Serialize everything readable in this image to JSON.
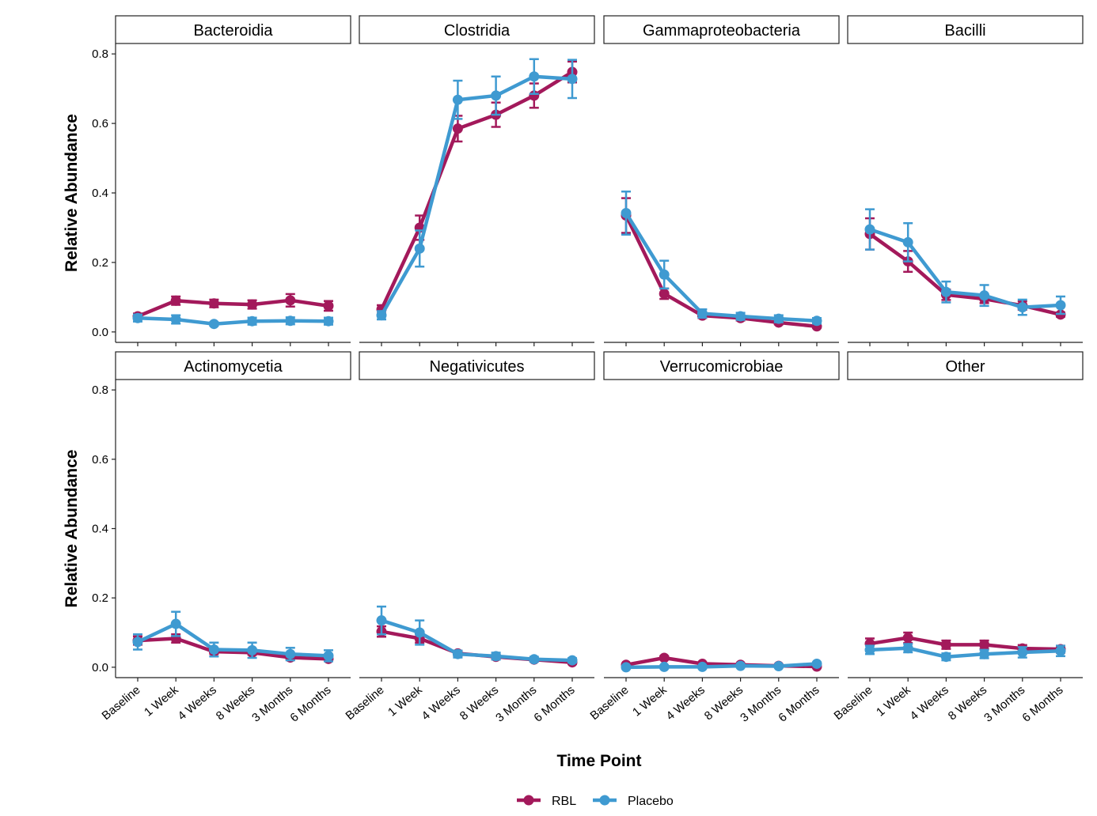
{
  "chart_data": {
    "type": "line",
    "xlabel": "Time Point",
    "ylabel": "Relative Abundance",
    "x": [
      "Baseline",
      "1 Week",
      "4 Weeks",
      "8 Weeks",
      "3 Months",
      "6 Months"
    ],
    "yticks": [
      "0.0",
      "0.2",
      "0.4",
      "0.6",
      "0.8"
    ],
    "ylim": [
      -0.03,
      0.83
    ],
    "grid": false,
    "legend": {
      "position": "bottom",
      "entries": [
        {
          "name": "RBL",
          "color": "#A3195B"
        },
        {
          "name": "Placebo",
          "color": "#3F9AD1"
        }
      ]
    },
    "panels": [
      {
        "title": "Bacteroidia",
        "series": [
          {
            "name": "RBL",
            "values": [
              0.045,
              0.09,
              0.082,
              0.079,
              0.091,
              0.075
            ],
            "err": [
              0.008,
              0.012,
              0.011,
              0.012,
              0.018,
              0.014
            ]
          },
          {
            "name": "Placebo",
            "values": [
              0.04,
              0.036,
              0.023,
              0.031,
              0.032,
              0.031
            ],
            "err": [
              0.01,
              0.012,
              0.005,
              0.01,
              0.01,
              0.01
            ]
          }
        ]
      },
      {
        "title": "Clostridia",
        "series": [
          {
            "name": "RBL",
            "values": [
              0.065,
              0.3,
              0.585,
              0.625,
              0.68,
              0.748
            ],
            "err": [
              0.012,
              0.035,
              0.037,
              0.035,
              0.035,
              0.03
            ]
          },
          {
            "name": "Placebo",
            "values": [
              0.048,
              0.24,
              0.668,
              0.68,
              0.735,
              0.728
            ],
            "err": [
              0.012,
              0.052,
              0.055,
              0.055,
              0.05,
              0.055
            ]
          }
        ]
      },
      {
        "title": "Gammaproteobacteria",
        "series": [
          {
            "name": "RBL",
            "values": [
              0.335,
              0.11,
              0.047,
              0.04,
              0.027,
              0.016
            ],
            "err": [
              0.05,
              0.015,
              0.007,
              0.007,
              0.005,
              0.004
            ]
          },
          {
            "name": "Placebo",
            "values": [
              0.342,
              0.165,
              0.053,
              0.045,
              0.038,
              0.032
            ],
            "err": [
              0.062,
              0.04,
              0.012,
              0.01,
              0.01,
              0.008
            ]
          }
        ]
      },
      {
        "title": "Bacilli",
        "series": [
          {
            "name": "RBL",
            "values": [
              0.282,
              0.203,
              0.107,
              0.095,
              0.076,
              0.05
            ],
            "err": [
              0.045,
              0.03,
              0.015,
              0.012,
              0.012,
              0.006
            ]
          },
          {
            "name": "Placebo",
            "values": [
              0.295,
              0.258,
              0.115,
              0.105,
              0.071,
              0.077
            ],
            "err": [
              0.058,
              0.055,
              0.03,
              0.03,
              0.022,
              0.025
            ]
          }
        ]
      },
      {
        "title": "Actinomycetia",
        "series": [
          {
            "name": "RBL",
            "values": [
              0.077,
              0.083,
              0.045,
              0.042,
              0.028,
              0.024
            ],
            "err": [
              0.012,
              0.012,
              0.007,
              0.006,
              0.006,
              0.006
            ]
          },
          {
            "name": "Placebo",
            "values": [
              0.073,
              0.125,
              0.051,
              0.049,
              0.038,
              0.033
            ],
            "err": [
              0.022,
              0.035,
              0.02,
              0.022,
              0.018,
              0.016
            ]
          }
        ]
      },
      {
        "title": "Negativicutes",
        "series": [
          {
            "name": "RBL",
            "values": [
              0.103,
              0.083,
              0.04,
              0.03,
              0.022,
              0.014
            ],
            "err": [
              0.015,
              0.012,
              0.007,
              0.006,
              0.004,
              0.004
            ]
          },
          {
            "name": "Placebo",
            "values": [
              0.135,
              0.1,
              0.038,
              0.032,
              0.023,
              0.02
            ],
            "err": [
              0.04,
              0.035,
              0.01,
              0.01,
              0.007,
              0.006
            ]
          }
        ]
      },
      {
        "title": "Verrucomicrobiae",
        "series": [
          {
            "name": "RBL",
            "values": [
              0.007,
              0.027,
              0.01,
              0.007,
              0.004,
              0.002
            ],
            "err": [
              0.002,
              0.005,
              0.003,
              0.003,
              0.002,
              0.002
            ]
          },
          {
            "name": "Placebo",
            "values": [
              0.0,
              0.001,
              0.001,
              0.004,
              0.003,
              0.01
            ],
            "err": [
              0.001,
              0.002,
              0.002,
              0.002,
              0.002,
              0.004
            ]
          }
        ]
      },
      {
        "title": "Other",
        "series": [
          {
            "name": "RBL",
            "values": [
              0.068,
              0.085,
              0.065,
              0.065,
              0.054,
              0.052
            ],
            "err": [
              0.015,
              0.015,
              0.012,
              0.012,
              0.01,
              0.01
            ]
          },
          {
            "name": "Placebo",
            "values": [
              0.05,
              0.055,
              0.03,
              0.038,
              0.043,
              0.047
            ],
            "err": [
              0.012,
              0.012,
              0.01,
              0.012,
              0.015,
              0.015
            ]
          }
        ]
      }
    ]
  }
}
